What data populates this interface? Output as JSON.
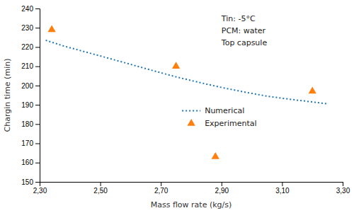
{
  "chart_data": {
    "type": "line",
    "xlabel": "Mass flow rate (kg/s)",
    "ylabel": "Chargin time (min)",
    "series": [
      {
        "name": "Numerical",
        "type": "line",
        "line_style": "dotted",
        "x": [
          2.32,
          2.38,
          2.45,
          2.52,
          2.6,
          2.68,
          2.75,
          2.83,
          2.9,
          2.98,
          3.05,
          3.12,
          3.2,
          3.25
        ],
        "values": [
          223.5,
          220.5,
          217.5,
          214.5,
          211.0,
          207.5,
          204.5,
          201.5,
          199.0,
          196.5,
          194.5,
          193.0,
          191.5,
          190.5
        ]
      },
      {
        "name": "Experimental",
        "type": "scatter",
        "marker": "triangle",
        "x": [
          2.34,
          2.75,
          2.88,
          3.2
        ],
        "values": [
          229.0,
          210.0,
          163.0,
          197.0
        ]
      }
    ],
    "xlim": [
      2.3,
      3.3
    ],
    "ylim": [
      150,
      240
    ],
    "xticks": [
      {
        "value": 2.3,
        "label": "2,30"
      },
      {
        "value": 2.5,
        "label": "2,50"
      },
      {
        "value": 2.7,
        "label": "2,70"
      },
      {
        "value": 2.9,
        "label": "2,90"
      },
      {
        "value": 3.1,
        "label": "3,10"
      },
      {
        "value": 3.3,
        "label": "3,30"
      }
    ],
    "yticks": [
      150,
      160,
      170,
      180,
      190,
      200,
      210,
      220,
      230,
      240
    ],
    "annotations": [
      "Tin: -5°C",
      "PCM: water",
      "Top capsule"
    ],
    "legend": "center",
    "grid": false
  }
}
